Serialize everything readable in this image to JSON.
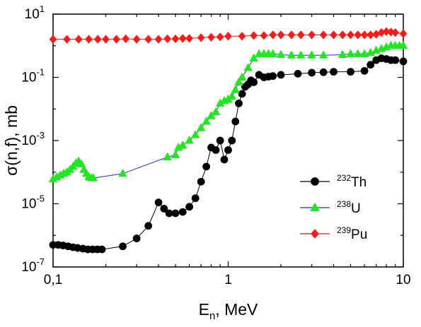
{
  "chart_data": {
    "type": "scatter",
    "title": "",
    "xlabel": {
      "main": "E",
      "sub": "n",
      "rest": ", MeV"
    },
    "ylabel": "σ(n,f), mb",
    "x_scale": "log",
    "y_scale": "log",
    "xlim": [
      0.1,
      10
    ],
    "ylim": [
      1e-07,
      10
    ],
    "x_ticks": [
      {
        "value": 0.1,
        "label": "0,1"
      },
      {
        "value": 1,
        "label": "1"
      },
      {
        "value": 10,
        "label": "10"
      }
    ],
    "y_ticks": [
      {
        "value": 1e-07,
        "base": "10",
        "exp": "-7"
      },
      {
        "value": 1e-05,
        "base": "10",
        "exp": "-5"
      },
      {
        "value": 0.001,
        "base": "10",
        "exp": "-3"
      },
      {
        "value": 0.1,
        "base": "10",
        "exp": "-1"
      },
      {
        "value": 10,
        "base": "10",
        "exp": "1"
      }
    ],
    "grid": false,
    "legend_position": "right-middle",
    "series": [
      {
        "name": {
          "mass": "232",
          "element": "Th"
        },
        "marker": "circle",
        "marker_color": "#000000",
        "line_color": "#000000",
        "x": [
          0.1,
          0.107,
          0.114,
          0.122,
          0.13,
          0.138,
          0.148,
          0.158,
          0.168,
          0.179,
          0.19,
          0.25,
          0.3,
          0.35,
          0.4,
          0.43,
          0.46,
          0.5,
          0.55,
          0.6,
          0.65,
          0.7,
          0.75,
          0.8,
          0.85,
          0.9,
          0.95,
          1.0,
          1.05,
          1.1,
          1.15,
          1.2,
          1.25,
          1.3,
          1.35,
          1.4,
          1.5,
          1.6,
          1.7,
          1.8,
          2.0,
          2.5,
          3.0,
          3.5,
          4.0,
          5.0,
          6.0,
          6.5,
          7.0,
          7.5,
          8.0,
          8.5,
          9.0,
          10.0
        ],
        "y": [
          5e-07,
          5e-07,
          4.8e-07,
          4.5e-07,
          4.2e-07,
          4e-07,
          3.8e-07,
          3.6e-07,
          3.6e-07,
          3.6e-07,
          3.6e-07,
          4.5e-07,
          8e-07,
          2e-06,
          1.1e-05,
          7e-06,
          5e-06,
          5e-06,
          5.5e-06,
          8e-06,
          1.5e-05,
          5e-05,
          0.00015,
          0.0006,
          0.0005,
          0.001,
          0.00025,
          0.0005,
          0.001,
          0.004,
          0.015,
          0.03,
          0.05,
          0.06,
          0.08,
          0.07,
          0.12,
          0.1,
          0.105,
          0.11,
          0.12,
          0.13,
          0.14,
          0.145,
          0.15,
          0.15,
          0.16,
          0.25,
          0.35,
          0.4,
          0.38,
          0.35,
          0.35,
          0.32
        ]
      },
      {
        "name": {
          "mass": "238",
          "element": "U"
        },
        "marker": "triangle",
        "marker_color": "#22e622",
        "line_color": "#2030c0",
        "x": [
          0.1,
          0.105,
          0.11,
          0.115,
          0.12,
          0.125,
          0.13,
          0.135,
          0.14,
          0.145,
          0.15,
          0.155,
          0.16,
          0.165,
          0.17,
          0.25,
          0.45,
          0.5,
          0.52,
          0.55,
          0.6,
          0.65,
          0.7,
          0.75,
          0.8,
          0.85,
          0.9,
          0.95,
          1.0,
          1.05,
          1.1,
          1.15,
          1.2,
          1.3,
          1.4,
          1.5,
          1.6,
          1.7,
          1.8,
          2.0,
          2.3,
          2.6,
          3.0,
          3.5,
          4.5,
          5.0,
          5.5,
          6.0,
          6.5,
          7.0,
          7.5,
          8.0,
          8.5,
          9.0,
          9.5,
          10.0
        ],
        "y": [
          6e-05,
          7e-05,
          8e-05,
          9e-05,
          0.0001,
          0.00012,
          0.00015,
          0.00019,
          0.00022,
          0.00018,
          0.00012,
          9e-05,
          7e-05,
          6.5e-05,
          6.5e-05,
          9e-05,
          0.0003,
          0.00035,
          0.0006,
          0.0007,
          0.001,
          0.0015,
          0.0025,
          0.004,
          0.006,
          0.008,
          0.015,
          0.018,
          0.02,
          0.025,
          0.04,
          0.07,
          0.1,
          0.2,
          0.4,
          0.55,
          0.55,
          0.55,
          0.55,
          0.52,
          0.5,
          0.5,
          0.5,
          0.5,
          0.52,
          0.55,
          0.55,
          0.55,
          0.6,
          0.7,
          0.8,
          0.9,
          1.0,
          1.0,
          1.0,
          1.0
        ]
      },
      {
        "name": {
          "mass": "239",
          "element": "Pu"
        },
        "marker": "diamond",
        "marker_color": "#ff1a1a",
        "line_color": "#c81e1e",
        "x": [
          0.1,
          0.12,
          0.14,
          0.16,
          0.18,
          0.2,
          0.23,
          0.26,
          0.3,
          0.35,
          0.4,
          0.45,
          0.5,
          0.55,
          0.6,
          0.7,
          0.8,
          0.9,
          1.0,
          1.2,
          1.4,
          1.6,
          1.8,
          2.0,
          2.3,
          2.6,
          3.0,
          3.5,
          4.0,
          4.5,
          5.0,
          5.5,
          6.0,
          6.5,
          7.0,
          7.5,
          8.0,
          8.5,
          9.0,
          10.0
        ],
        "y": [
          1.6,
          1.6,
          1.6,
          1.6,
          1.6,
          1.6,
          1.6,
          1.65,
          1.6,
          1.6,
          1.6,
          1.65,
          1.65,
          1.7,
          1.7,
          1.8,
          1.85,
          1.9,
          2.0,
          2.0,
          2.1,
          2.1,
          2.2,
          2.2,
          2.2,
          2.2,
          2.2,
          2.2,
          2.2,
          2.2,
          2.2,
          2.2,
          2.2,
          2.2,
          2.3,
          2.6,
          2.8,
          2.7,
          2.6,
          2.4
        ]
      }
    ]
  }
}
